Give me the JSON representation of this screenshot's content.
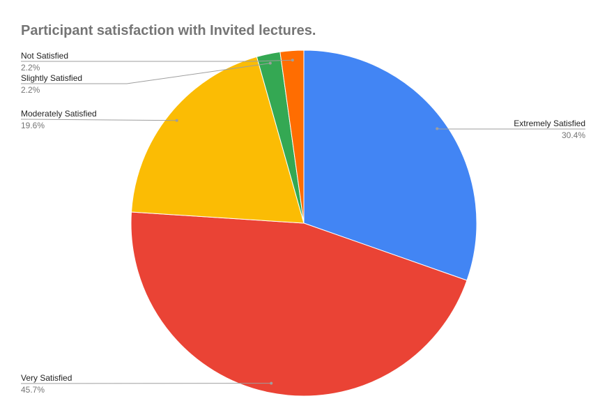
{
  "chart_data": {
    "type": "pie",
    "title": "Participant satisfaction with Invited lectures.",
    "categories": [
      "Extremely Satisfied",
      "Very Satisfied",
      "Moderately Satisfied",
      "Slightly Satisfied",
      "Not Satisfied"
    ],
    "values": [
      30.4,
      45.7,
      19.6,
      2.2,
      2.2
    ],
    "value_labels": [
      "30.4%",
      "45.7%",
      "19.6%",
      "2.2%",
      "2.2%"
    ],
    "colors": [
      "#4285f4",
      "#ea4335",
      "#fbbc04",
      "#34a853",
      "#ff6d01"
    ]
  }
}
